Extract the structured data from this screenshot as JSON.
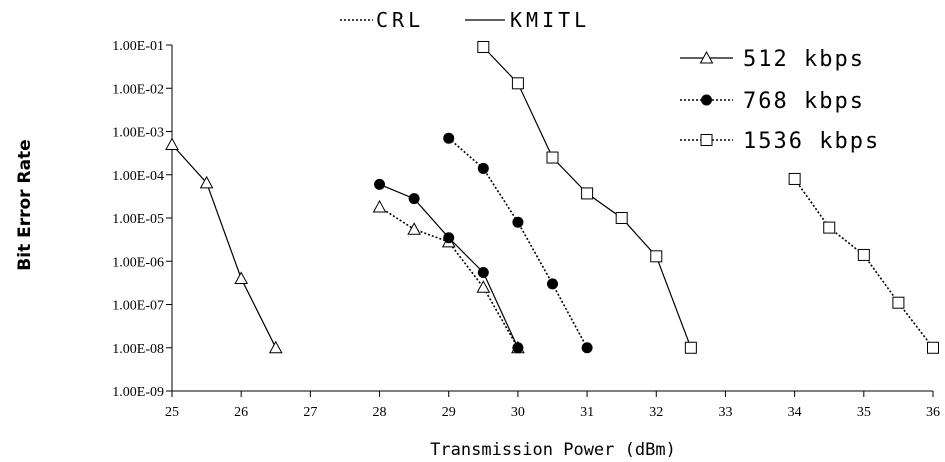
{
  "chart_data": {
    "type": "line",
    "xlabel": "Transmission Power (dBm)",
    "ylabel": "Bit Error Rate",
    "xlim": [
      25,
      36
    ],
    "x_ticks": [
      "25",
      "26",
      "27",
      "28",
      "29",
      "30",
      "31",
      "32",
      "33",
      "34",
      "35",
      "36"
    ],
    "ylim_log10": [
      -9,
      -1
    ],
    "y_ticks": [
      "1.00E-01",
      "1.00E-02",
      "1.00E-03",
      "1.00E-04",
      "1.00E-05",
      "1.00E-06",
      "1.00E-07",
      "1.00E-08",
      "1.00E-09"
    ],
    "y_scale": "log",
    "grid": false,
    "line_styles": [
      {
        "label": "CRL",
        "dash": "dashed"
      },
      {
        "label": "KMITL",
        "dash": "solid"
      }
    ],
    "legend_placement": "top-right",
    "series": [
      {
        "name": "512 kbps",
        "marker": "triangle",
        "style": "solid",
        "x": [
          25,
          25.5,
          26,
          26.5
        ],
        "y": [
          0.0005,
          6.5e-05,
          4e-07,
          1e-08
        ]
      },
      {
        "name": "512 kbps",
        "marker": "triangle",
        "style": "dashed",
        "x": [
          28,
          28.5,
          29,
          29.5,
          30
        ],
        "y": [
          1.8e-05,
          5.5e-06,
          2.8e-06,
          2.5e-07,
          1e-08
        ]
      },
      {
        "name": "768 kbps",
        "marker": "circle",
        "style": "solid",
        "x": [
          28,
          28.5,
          29,
          29.5,
          30
        ],
        "y": [
          6e-05,
          2.8e-05,
          3.5e-06,
          5.5e-07,
          1e-08
        ]
      },
      {
        "name": "768 kbps",
        "marker": "circle",
        "style": "dashed",
        "x": [
          29,
          29.5,
          30,
          30.5,
          31
        ],
        "y": [
          0.0007,
          0.00014,
          8e-06,
          3e-07,
          1e-08
        ]
      },
      {
        "name": "1536 kbps",
        "marker": "square",
        "style": "solid",
        "x": [
          29.5,
          30,
          30.5,
          31,
          31.5,
          32,
          32.5
        ],
        "y": [
          0.09,
          0.013,
          0.00025,
          3.7e-05,
          1e-05,
          1.3e-06,
          1e-08
        ]
      },
      {
        "name": "1536 kbps",
        "marker": "square",
        "style": "dashed",
        "x": [
          34,
          34.5,
          35,
          35.5,
          36
        ],
        "y": [
          8e-05,
          6e-06,
          1.4e-06,
          1.1e-07,
          1e-08
        ]
      }
    ],
    "legend": [
      {
        "label": "512 kbps",
        "marker": "triangle",
        "style": "solid"
      },
      {
        "label": "768 kbps",
        "marker": "circle",
        "style": "dashed"
      },
      {
        "label": "1536 kbps",
        "marker": "square",
        "style": "dashed"
      }
    ]
  }
}
